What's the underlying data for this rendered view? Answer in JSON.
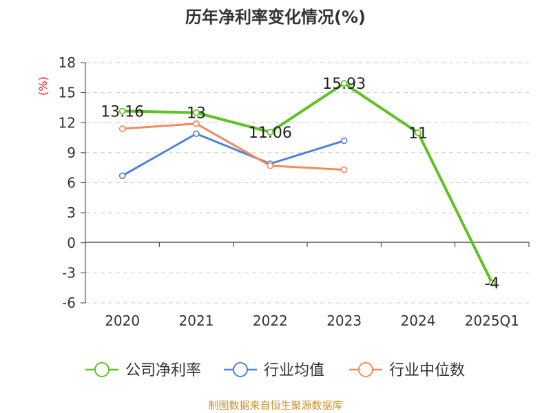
{
  "chart_data": {
    "type": "line",
    "title": "历年净利率变化情况(%)",
    "y_unit": "(%)",
    "categories": [
      "2020",
      "2021",
      "2022",
      "2023",
      "2024",
      "2025Q1"
    ],
    "ylim": [
      -6,
      18
    ],
    "yticks": [
      -6,
      -3,
      0,
      3,
      6,
      9,
      12,
      15,
      18
    ],
    "ytick_labels": [
      "-6",
      "-3",
      "0",
      "3",
      "6",
      "9",
      "12",
      "15",
      "18"
    ],
    "grid": true,
    "legend_position": "bottom",
    "series": [
      {
        "name": "公司净利率",
        "color": "#5ec221",
        "values": [
          13.16,
          13,
          11.06,
          15.93,
          11,
          -4
        ],
        "labels": [
          "13.16",
          "13",
          "11.06",
          "15.93",
          "11",
          "-4"
        ]
      },
      {
        "name": "行业均值",
        "color": "#4f81d8",
        "values": [
          6.7,
          10.9,
          7.9,
          10.2,
          null,
          null
        ]
      },
      {
        "name": "行业中位数",
        "color": "#f08b5a",
        "values": [
          11.4,
          11.9,
          7.7,
          7.3,
          null,
          null
        ]
      }
    ]
  },
  "footer": {
    "source": "制图数据来自恒生聚源数据库"
  }
}
